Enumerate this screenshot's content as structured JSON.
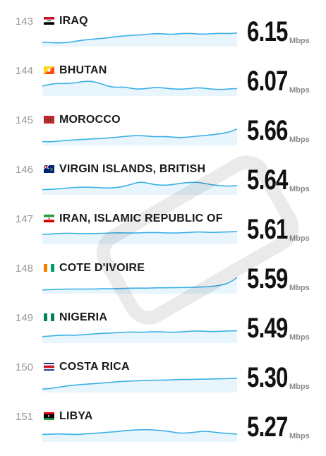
{
  "unit_label": "Mbps",
  "colors": {
    "spark_line": "#3ab0e6",
    "spark_fill": "#e8f5fc",
    "rank_text": "#9a9a9a"
  },
  "rows": [
    {
      "rank": "143",
      "country": "IRAQ",
      "speed": "6.15",
      "flag_icon": "iraq-flag-icon",
      "trend": [
        0.15,
        0.12,
        0.1,
        0.12,
        0.2,
        0.28,
        0.33,
        0.38,
        0.42,
        0.5,
        0.55,
        0.58,
        0.62,
        0.66,
        0.7,
        0.68,
        0.65,
        0.7,
        0.72,
        0.68,
        0.66,
        0.7,
        0.72,
        0.7,
        0.74
      ]
    },
    {
      "rank": "144",
      "country": "BHUTAN",
      "speed": "6.07",
      "flag_icon": "bhutan-flag-icon",
      "trend": [
        0.5,
        0.62,
        0.68,
        0.66,
        0.7,
        0.8,
        0.82,
        0.7,
        0.5,
        0.42,
        0.45,
        0.35,
        0.3,
        0.36,
        0.42,
        0.38,
        0.32,
        0.3,
        0.33,
        0.4,
        0.36,
        0.3,
        0.28,
        0.32,
        0.34
      ]
    },
    {
      "rank": "145",
      "country": "MOROCCO",
      "speed": "5.66",
      "flag_icon": "morocco-flag-icon",
      "trend": [
        0.12,
        0.1,
        0.14,
        0.18,
        0.22,
        0.25,
        0.28,
        0.3,
        0.34,
        0.38,
        0.44,
        0.48,
        0.5,
        0.46,
        0.42,
        0.44,
        0.4,
        0.36,
        0.4,
        0.46,
        0.5,
        0.55,
        0.62,
        0.72,
        0.92
      ]
    },
    {
      "rank": "146",
      "country": "VIRGIN ISLANDS, BRITISH",
      "speed": "5.64",
      "flag_icon": "virgin-islands-british-flag-icon",
      "trend": [
        0.2,
        0.22,
        0.25,
        0.3,
        0.34,
        0.36,
        0.35,
        0.33,
        0.3,
        0.32,
        0.4,
        0.55,
        0.7,
        0.62,
        0.5,
        0.48,
        0.52,
        0.6,
        0.66,
        0.68,
        0.6,
        0.5,
        0.45,
        0.42,
        0.46
      ]
    },
    {
      "rank": "147",
      "country": "IRAN, ISLAMIC REPUBLIC OF",
      "speed": "5.61",
      "flag_icon": "iran-flag-icon",
      "trend": [
        0.5,
        0.52,
        0.55,
        0.58,
        0.56,
        0.54,
        0.55,
        0.56,
        0.58,
        0.6,
        0.6,
        0.58,
        0.6,
        0.62,
        0.62,
        0.6,
        0.58,
        0.6,
        0.62,
        0.66,
        0.64,
        0.62,
        0.64,
        0.66,
        0.68
      ]
    },
    {
      "rank": "148",
      "country": "COTE D'IVOIRE",
      "speed": "5.59",
      "flag_icon": "cote-divoire-flag-icon",
      "trend": [
        0.1,
        0.12,
        0.14,
        0.16,
        0.16,
        0.16,
        0.16,
        0.17,
        0.18,
        0.18,
        0.2,
        0.22,
        0.22,
        0.22,
        0.24,
        0.24,
        0.25,
        0.26,
        0.26,
        0.28,
        0.3,
        0.34,
        0.4,
        0.55,
        0.9
      ]
    },
    {
      "rank": "149",
      "country": "NIGERIA",
      "speed": "5.49",
      "flag_icon": "nigeria-flag-icon",
      "trend": [
        0.28,
        0.32,
        0.36,
        0.38,
        0.36,
        0.4,
        0.44,
        0.48,
        0.5,
        0.52,
        0.56,
        0.58,
        0.56,
        0.58,
        0.6,
        0.58,
        0.56,
        0.58,
        0.62,
        0.64,
        0.62,
        0.6,
        0.62,
        0.64,
        0.66
      ]
    },
    {
      "rank": "150",
      "country": "COSTA RICA",
      "speed": "5.30",
      "flag_icon": "costa-rica-flag-icon",
      "trend": [
        0.08,
        0.12,
        0.2,
        0.28,
        0.34,
        0.38,
        0.42,
        0.46,
        0.5,
        0.54,
        0.58,
        0.6,
        0.62,
        0.64,
        0.66,
        0.66,
        0.68,
        0.7,
        0.7,
        0.72,
        0.72,
        0.74,
        0.74,
        0.76,
        0.78
      ]
    },
    {
      "rank": "151",
      "country": "LIBYA",
      "speed": "5.27",
      "flag_icon": "libya-flag-icon",
      "trend": [
        0.34,
        0.36,
        0.38,
        0.36,
        0.34,
        0.36,
        0.4,
        0.44,
        0.48,
        0.52,
        0.58,
        0.62,
        0.64,
        0.66,
        0.62,
        0.58,
        0.5,
        0.42,
        0.44,
        0.5,
        0.56,
        0.5,
        0.44,
        0.4,
        0.36
      ]
    }
  ]
}
